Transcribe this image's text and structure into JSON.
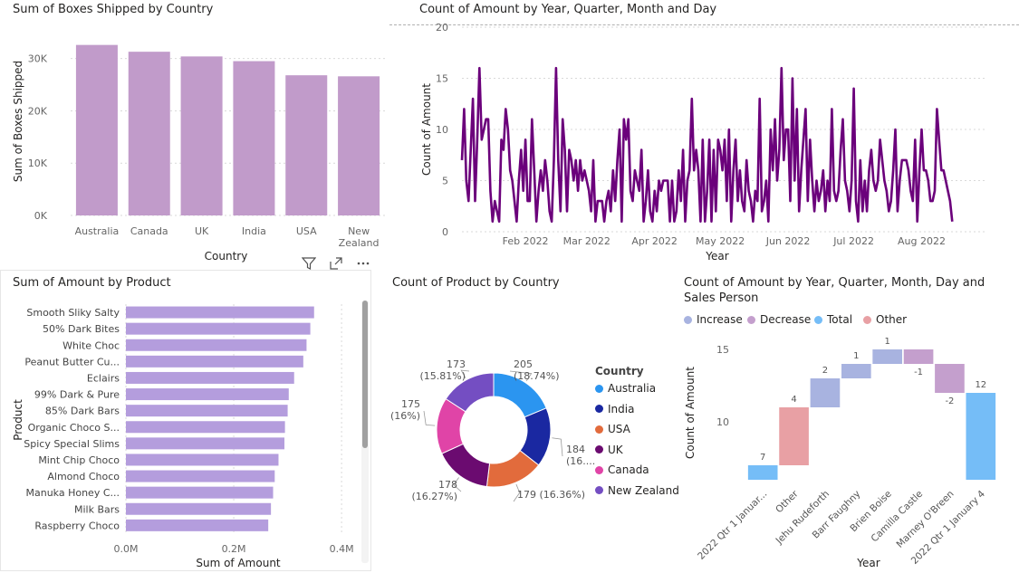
{
  "visuals": {
    "boxes": {
      "title": "Sum of Boxes Shipped by Country",
      "xlabel": "Country",
      "ylabel": "Sum of Boxes Shipped",
      "color": "#c19bca",
      "categories": [
        "Australia",
        "Canada",
        "UK",
        "India",
        "USA",
        "New Zealand"
      ],
      "values": [
        32600,
        31300,
        30400,
        29500,
        26800,
        26600
      ],
      "ylim": [
        0,
        36000
      ],
      "ticks": [
        {
          "v": 0,
          "label": "0K"
        },
        {
          "v": 10000,
          "label": "10K"
        },
        {
          "v": 20000,
          "label": "20K"
        },
        {
          "v": 30000,
          "label": "30K"
        }
      ]
    },
    "line": {
      "title": "Count of Amount by Year, Quarter, Month and Day",
      "xlabel": "Year",
      "ylabel": "Count of Amount",
      "color": "#6b007b",
      "ylim": [
        0,
        20
      ],
      "yticks": [
        0,
        5,
        10,
        15,
        20
      ],
      "xstart": "2022-01-03",
      "xend": "2022-08-31",
      "xticks": [
        {
          "date": "2022-02-01",
          "label": "Feb 2022"
        },
        {
          "date": "2022-03-01",
          "label": "Mar 2022"
        },
        {
          "date": "2022-04-01",
          "label": "Apr 2022"
        },
        {
          "date": "2022-05-01",
          "label": "May 2022"
        },
        {
          "date": "2022-06-01",
          "label": "Jun 2022"
        },
        {
          "date": "2022-07-01",
          "label": "Jul 2022"
        },
        {
          "date": "2022-08-01",
          "label": "Aug 2022"
        }
      ],
      "values": [
        7,
        12,
        5,
        3,
        8,
        13,
        3,
        9,
        16,
        9,
        10,
        11,
        11,
        4,
        1,
        3,
        2,
        1,
        9,
        8,
        12,
        10,
        6,
        5,
        3,
        1,
        5,
        8,
        4,
        9,
        3,
        3,
        11,
        6,
        1,
        4,
        6,
        4,
        7,
        5,
        2,
        1,
        7,
        16,
        7,
        2,
        11,
        8,
        2,
        8,
        7,
        5,
        7,
        4,
        7,
        5,
        6,
        5,
        4,
        2,
        7,
        1,
        3,
        3,
        3,
        1,
        3,
        4,
        2,
        6,
        3,
        7,
        10,
        1,
        11,
        9,
        11,
        4,
        3,
        6,
        5,
        4,
        8,
        1,
        3,
        6,
        2,
        1,
        4,
        2,
        5,
        4,
        5,
        5,
        5,
        1,
        5,
        1,
        2,
        6,
        3,
        8,
        1,
        5,
        6,
        13,
        6,
        8,
        6,
        1,
        9,
        1,
        4,
        9,
        1,
        8,
        2,
        9,
        8,
        6,
        9,
        3,
        10,
        1,
        6,
        9,
        3,
        6,
        3,
        2,
        7,
        4,
        3,
        1,
        4,
        3,
        13,
        2,
        3,
        5,
        1,
        10,
        6,
        11,
        5,
        8,
        16,
        7,
        10,
        10,
        3,
        15,
        5,
        12,
        2,
        6,
        9,
        12,
        3,
        9,
        5,
        2,
        5,
        3,
        4,
        6,
        2,
        5,
        3,
        12,
        4,
        3,
        4,
        8,
        11,
        5,
        4,
        2,
        5,
        14,
        3,
        1,
        7,
        2,
        5,
        2,
        6,
        8,
        5,
        4,
        5,
        9,
        7,
        5,
        4,
        2,
        3,
        6,
        10,
        2,
        5,
        7,
        7,
        7,
        6,
        4,
        3,
        9,
        1,
        6,
        10,
        6,
        6,
        5,
        3,
        3,
        4,
        12,
        9,
        6,
        6,
        5,
        4,
        3,
        1
      ]
    },
    "product": {
      "title": "Sum of Amount by Product",
      "xlabel": "Sum of Amount",
      "ylabel": "Product",
      "color": "#b49ddd",
      "categories": [
        "Smooth Sliky Salty",
        "50% Dark Bites",
        "White Choc",
        "Peanut Butter Cu...",
        "Eclairs",
        "99% Dark & Pure",
        "85% Dark Bars",
        "Organic Choco S...",
        "Spicy Special Slims",
        "Mint Chip Choco",
        "Almond Choco",
        "Manuka Honey C...",
        "Milk Bars",
        "Raspberry Choco"
      ],
      "values": [
        349000,
        342000,
        335000,
        329000,
        312000,
        302000,
        300000,
        295000,
        294000,
        283000,
        276000,
        273000,
        269000,
        264000
      ],
      "xlim": [
        0,
        425000
      ],
      "ticks": [
        {
          "v": 0,
          "label": "0.0M"
        },
        {
          "v": 200000,
          "label": "0.2M"
        },
        {
          "v": 400000,
          "label": "0.4M"
        }
      ]
    },
    "donut": {
      "title": "Count of Product by Country",
      "legend_title": "Country",
      "slices": [
        {
          "name": "Australia",
          "value": 205,
          "label": "205",
          "pct": "(18.74%)",
          "color": "#2b95f0"
        },
        {
          "name": "India",
          "value": 184,
          "label": "184",
          "pct": "(16....",
          "color": "#1a28a1"
        },
        {
          "name": "USA",
          "value": 179,
          "label": "179 (16.36%)",
          "pct": "",
          "color": "#e26b3c"
        },
        {
          "name": "UK",
          "value": 178,
          "label": "178",
          "pct": "(16.27%)",
          "color": "#6b0b70"
        },
        {
          "name": "Canada",
          "value": 175,
          "label": "175",
          "pct": "(16%)",
          "color": "#e044a7"
        },
        {
          "name": "New Zealand",
          "value": 173,
          "label": "173",
          "pct": "(15.81%)",
          "color": "#744ec2"
        }
      ]
    },
    "waterfall": {
      "title_line1": "Count of Amount by Year, Quarter, Month, Day and",
      "title_line2": "Sales Person",
      "xlabel": "Year",
      "ylabel": "Count of Amount",
      "ylim": [
        5.5,
        16
      ],
      "yticks": [
        {
          "v": 10,
          "label": "10"
        },
        {
          "v": 15,
          "label": "15"
        }
      ],
      "legend": [
        {
          "name": "Increase",
          "color": "#a8b3e0"
        },
        {
          "name": "Decrease",
          "color": "#c49fcd"
        },
        {
          "name": "Total",
          "color": "#75bdf7"
        },
        {
          "name": "Other",
          "color": "#e8a0a4"
        }
      ],
      "steps": [
        {
          "category": "2022 Qtr 1 Januar...",
          "label": "7",
          "start": 6,
          "end": 7,
          "type": "total"
        },
        {
          "category": "Other",
          "label": "4",
          "start": 7,
          "end": 11,
          "type": "other"
        },
        {
          "category": "Jehu Rudeforth",
          "label": "2",
          "start": 11,
          "end": 13,
          "type": "increase"
        },
        {
          "category": "Barr Faughny",
          "label": "1",
          "start": 13,
          "end": 14,
          "type": "increase"
        },
        {
          "category": "Brien Boise",
          "label": "1",
          "start": 14,
          "end": 15,
          "type": "increase"
        },
        {
          "category": "Camilla Castle",
          "label": "-1",
          "start": 15,
          "end": 14,
          "type": "decrease"
        },
        {
          "category": "Marney O'Breen",
          "label": "-2",
          "start": 14,
          "end": 12,
          "type": "decrease"
        },
        {
          "category": "2022 Qtr 1 January 4",
          "label": "12",
          "start": 6,
          "end": 12,
          "type": "total"
        }
      ]
    }
  }
}
